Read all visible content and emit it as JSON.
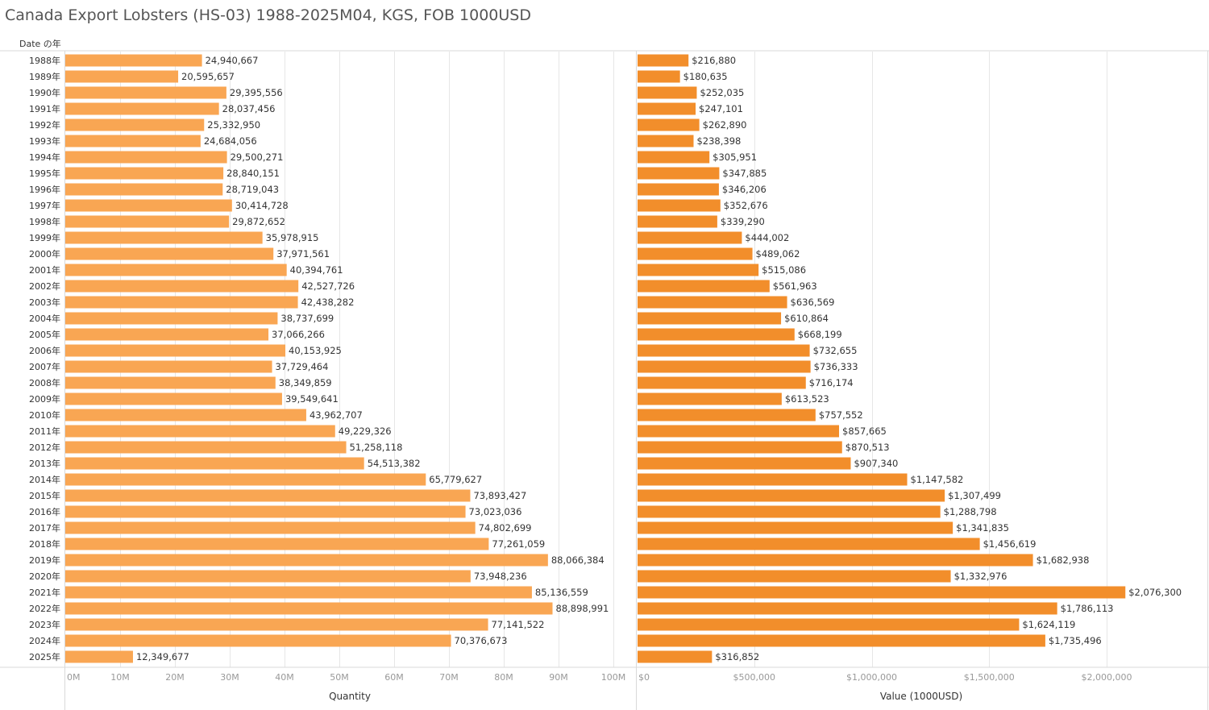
{
  "title": "Canada Export Lobsters (HS-03) 1988-2025M04, KGS, FOB 1000USD",
  "row_header": "Date の年",
  "colors": {
    "quantity_bar": "#F9A653",
    "value_bar": "#F28E2B",
    "grid": "#E6E6E6",
    "axis_text": "#999999",
    "label_text": "#333333"
  },
  "chart_data": [
    {
      "type": "bar",
      "orientation": "horizontal",
      "xlabel": "Quantity",
      "xlim": [
        0,
        105000000
      ],
      "ticks": [
        0,
        10000000,
        20000000,
        30000000,
        40000000,
        50000000,
        60000000,
        70000000,
        80000000,
        90000000,
        100000000
      ],
      "tick_labels": [
        "0M",
        "10M",
        "20M",
        "30M",
        "40M",
        "50M",
        "60M",
        "70M",
        "80M",
        "90M",
        "100M"
      ],
      "grid": true,
      "categories": [
        "1988年",
        "1989年",
        "1990年",
        "1991年",
        "1992年",
        "1993年",
        "1994年",
        "1995年",
        "1996年",
        "1997年",
        "1998年",
        "1999年",
        "2000年",
        "2001年",
        "2002年",
        "2003年",
        "2004年",
        "2005年",
        "2006年",
        "2007年",
        "2008年",
        "2009年",
        "2010年",
        "2011年",
        "2012年",
        "2013年",
        "2014年",
        "2015年",
        "2016年",
        "2017年",
        "2018年",
        "2019年",
        "2020年",
        "2021年",
        "2022年",
        "2023年",
        "2024年",
        "2025年"
      ],
      "values": [
        24940667,
        20595657,
        29395556,
        28037456,
        25332950,
        24684056,
        29500271,
        28840151,
        28719043,
        30414728,
        29872652,
        35978915,
        37971561,
        40394761,
        42527726,
        42438282,
        38737699,
        37066266,
        40153925,
        37729464,
        38349859,
        39549641,
        43962707,
        49229326,
        51258118,
        54513382,
        65779627,
        73893427,
        73023036,
        74802699,
        77261059,
        88066384,
        73948236,
        85136559,
        88898991,
        77141522,
        70376673,
        12349677
      ],
      "data_labels": [
        "24,940,667",
        "20,595,657",
        "29,395,556",
        "28,037,456",
        "25,332,950",
        "24,684,056",
        "29,500,271",
        "28,840,151",
        "28,719,043",
        "30,414,728",
        "29,872,652",
        "35,978,915",
        "37,971,561",
        "40,394,761",
        "42,527,726",
        "42,438,282",
        "38,737,699",
        "37,066,266",
        "40,153,925",
        "37,729,464",
        "38,349,859",
        "39,549,641",
        "43,962,707",
        "49,229,326",
        "51,258,118",
        "54,513,382",
        "65,779,627",
        "73,893,427",
        "73,023,036",
        "74,802,699",
        "77,261,059",
        "88,066,384",
        "73,948,236",
        "85,136,559",
        "88,898,991",
        "77,141,522",
        "70,376,673",
        "12,349,677"
      ]
    },
    {
      "type": "bar",
      "orientation": "horizontal",
      "xlabel": "Value (1000USD)",
      "xlim": [
        0,
        2400000
      ],
      "ticks": [
        0,
        500000,
        1000000,
        1500000,
        2000000
      ],
      "tick_labels": [
        "$0",
        "$500,000",
        "$1,000,000",
        "$1,500,000",
        "$2,000,000"
      ],
      "grid": true,
      "categories": [
        "1988年",
        "1989年",
        "1990年",
        "1991年",
        "1992年",
        "1993年",
        "1994年",
        "1995年",
        "1996年",
        "1997年",
        "1998年",
        "1999年",
        "2000年",
        "2001年",
        "2002年",
        "2003年",
        "2004年",
        "2005年",
        "2006年",
        "2007年",
        "2008年",
        "2009年",
        "2010年",
        "2011年",
        "2012年",
        "2013年",
        "2014年",
        "2015年",
        "2016年",
        "2017年",
        "2018年",
        "2019年",
        "2020年",
        "2021年",
        "2022年",
        "2023年",
        "2024年",
        "2025年"
      ],
      "values": [
        216880,
        180635,
        252035,
        247101,
        262890,
        238398,
        305951,
        347885,
        346206,
        352676,
        339290,
        444002,
        489062,
        515086,
        561963,
        636569,
        610864,
        668199,
        732655,
        736333,
        716174,
        613523,
        757552,
        857665,
        870513,
        907340,
        1147582,
        1307499,
        1288798,
        1341835,
        1456619,
        1682938,
        1332976,
        2076300,
        1786113,
        1624119,
        1735496,
        316852
      ],
      "data_labels": [
        "$216,880",
        "$180,635",
        "$252,035",
        "$247,101",
        "$262,890",
        "$238,398",
        "$305,951",
        "$347,885",
        "$346,206",
        "$352,676",
        "$339,290",
        "$444,002",
        "$489,062",
        "$515,086",
        "$561,963",
        "$636,569",
        "$610,864",
        "$668,199",
        "$732,655",
        "$736,333",
        "$716,174",
        "$613,523",
        "$757,552",
        "$857,665",
        "$870,513",
        "$907,340",
        "$1,147,582",
        "$1,307,499",
        "$1,288,798",
        "$1,341,835",
        "$1,456,619",
        "$1,682,938",
        "$1,332,976",
        "$2,076,300",
        "$1,786,113",
        "$1,624,119",
        "$1,735,496",
        "$316,852"
      ]
    }
  ]
}
